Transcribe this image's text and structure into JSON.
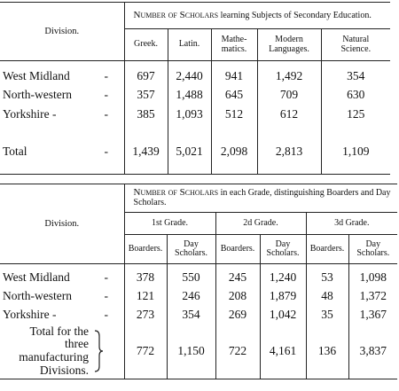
{
  "table1": {
    "division_header": "Division.",
    "group_header_caps": "Number of Scholars",
    "group_header_rest": "learning Subjects of Secondary Education.",
    "columns": [
      "Greek.",
      "Latin.",
      "Mathe-\nmatics.",
      "Modern\nLanguages.",
      "Natural\nScience."
    ],
    "rows": [
      {
        "label": "West Midland",
        "dash": "-",
        "values": [
          "697",
          "2,440",
          "941",
          "1,492",
          "354"
        ]
      },
      {
        "label": "North-western",
        "dash": "-",
        "values": [
          "357",
          "1,488",
          "645",
          "709",
          "630"
        ]
      },
      {
        "label": "Yorkshire -",
        "dash": "-",
        "values": [
          "385",
          "1,093",
          "512",
          "612",
          "125"
        ]
      }
    ],
    "total": {
      "label": "Total",
      "dash": "-",
      "values": [
        "1,439",
        "5,021",
        "2,098",
        "2,813",
        "1,109"
      ]
    }
  },
  "table2": {
    "division_header": "Division.",
    "group_header_caps": "Number of Scholars",
    "group_header_rest": "in each Grade, distinguishing Boarders and Day Scholars.",
    "grades": [
      "1st Grade.",
      "2d Grade.",
      "3d Grade."
    ],
    "subcolumns": [
      "Boarders.",
      "Day\nScholars."
    ],
    "rows": [
      {
        "label": "West Midland",
        "dash": "-",
        "values": [
          "378",
          "550",
          "245",
          "1,240",
          "53",
          "1,098"
        ]
      },
      {
        "label": "North-western",
        "dash": "-",
        "values": [
          "121",
          "246",
          "208",
          "1,879",
          "48",
          "1,372"
        ]
      },
      {
        "label": "Yorkshire -",
        "dash": "-",
        "values": [
          "273",
          "354",
          "269",
          "1,042",
          "35",
          "1,367"
        ]
      }
    ],
    "total": {
      "label": "Total for the three\nmanufacturing\nDivisions.",
      "values": [
        "772",
        "1,150",
        "722",
        "4,161",
        "136",
        "3,837"
      ]
    }
  }
}
